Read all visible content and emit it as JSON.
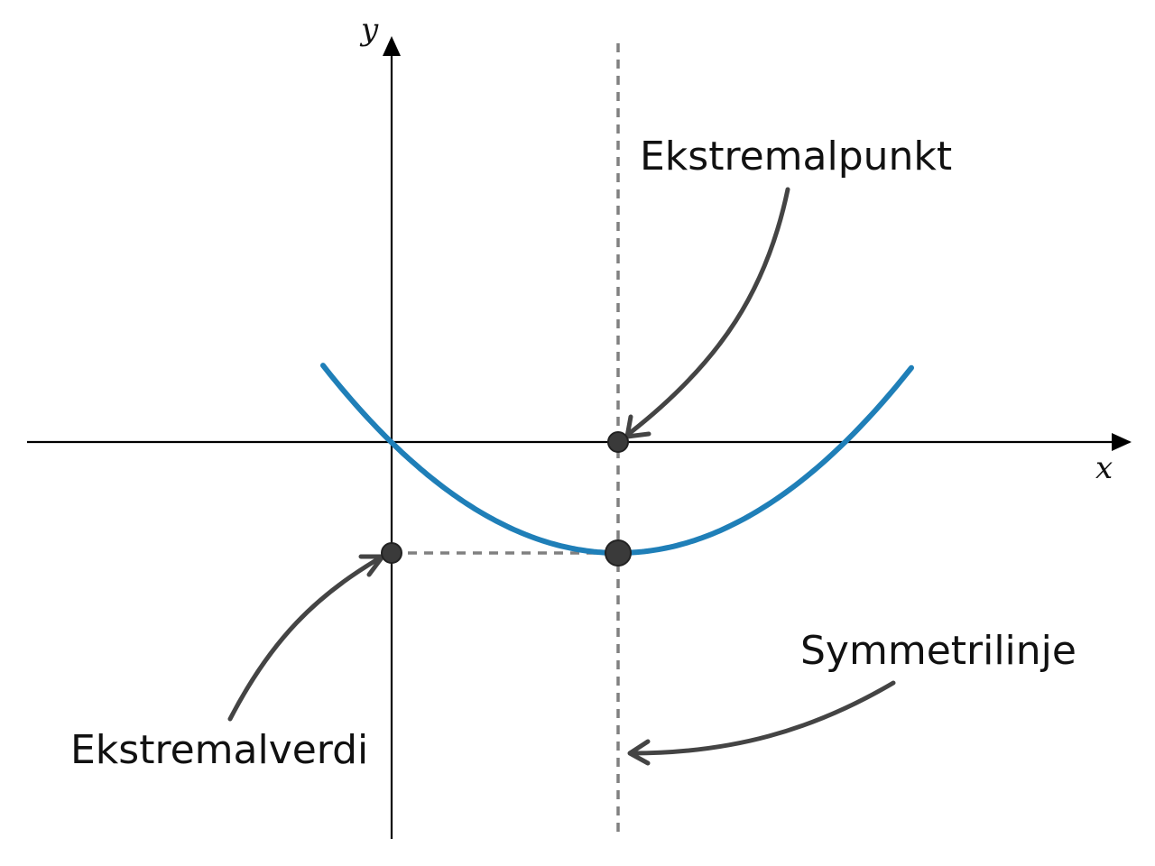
{
  "axes": {
    "x_label": "x",
    "y_label": "y"
  },
  "labels": {
    "extremal_point": "Ekstremalpunkt",
    "extremal_value": "Ekstremalverdi",
    "symmetry_line": "Symmetrilinje"
  },
  "colors": {
    "curve": "#1f7fb8",
    "axes": "#000000",
    "guides": "#808080",
    "arrows": "#444444",
    "points": "#3a3a3a"
  }
}
